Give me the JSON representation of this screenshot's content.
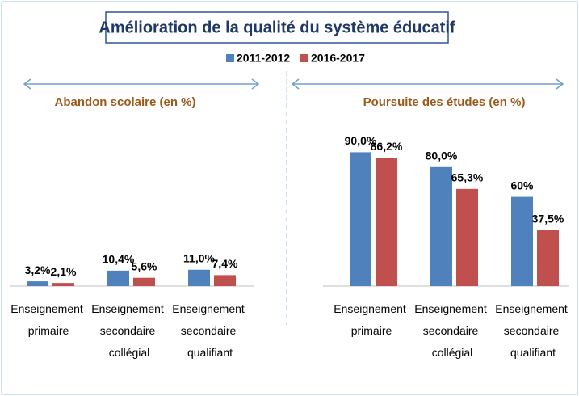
{
  "title": "Amélioration de la qualité du système éducatif",
  "chart_data": [
    {
      "type": "bar",
      "title": "Abandon scolaire (en %)",
      "categories": [
        "Enseignement primaire",
        "Enseignement secondaire collégial",
        "Enseignement secondaire qualifiant"
      ],
      "ylim": [
        0,
        100
      ],
      "series": [
        {
          "name": "2011-2012",
          "color": "#4f81bd",
          "values": [
            3.2,
            10.4,
            11.0
          ],
          "value_labels": [
            "3,2%",
            "10,4%",
            "11,0%"
          ]
        },
        {
          "name": "2016-2017",
          "color": "#c0504d",
          "values": [
            2.1,
            5.6,
            7.4
          ],
          "value_labels": [
            "2,1%",
            "5,6%",
            "7,4%"
          ]
        }
      ]
    },
    {
      "type": "bar",
      "title": "Poursuite des études (en %)",
      "categories": [
        "Enseignement primaire",
        "Enseignement secondaire collégial",
        "Enseignement secondaire qualifiant"
      ],
      "ylim": [
        0,
        100
      ],
      "series": [
        {
          "color": "#4f81bd",
          "values": [
            90.0,
            80.0,
            60
          ],
          "value_labels": [
            "90,0%",
            "80,0%",
            "60%"
          ]
        },
        {
          "color": "#c0504d",
          "values": [
            86.2,
            65.3,
            37.5
          ],
          "value_labels": [
            "86,2%",
            "65,3%",
            "37,5%"
          ]
        }
      ]
    }
  ]
}
